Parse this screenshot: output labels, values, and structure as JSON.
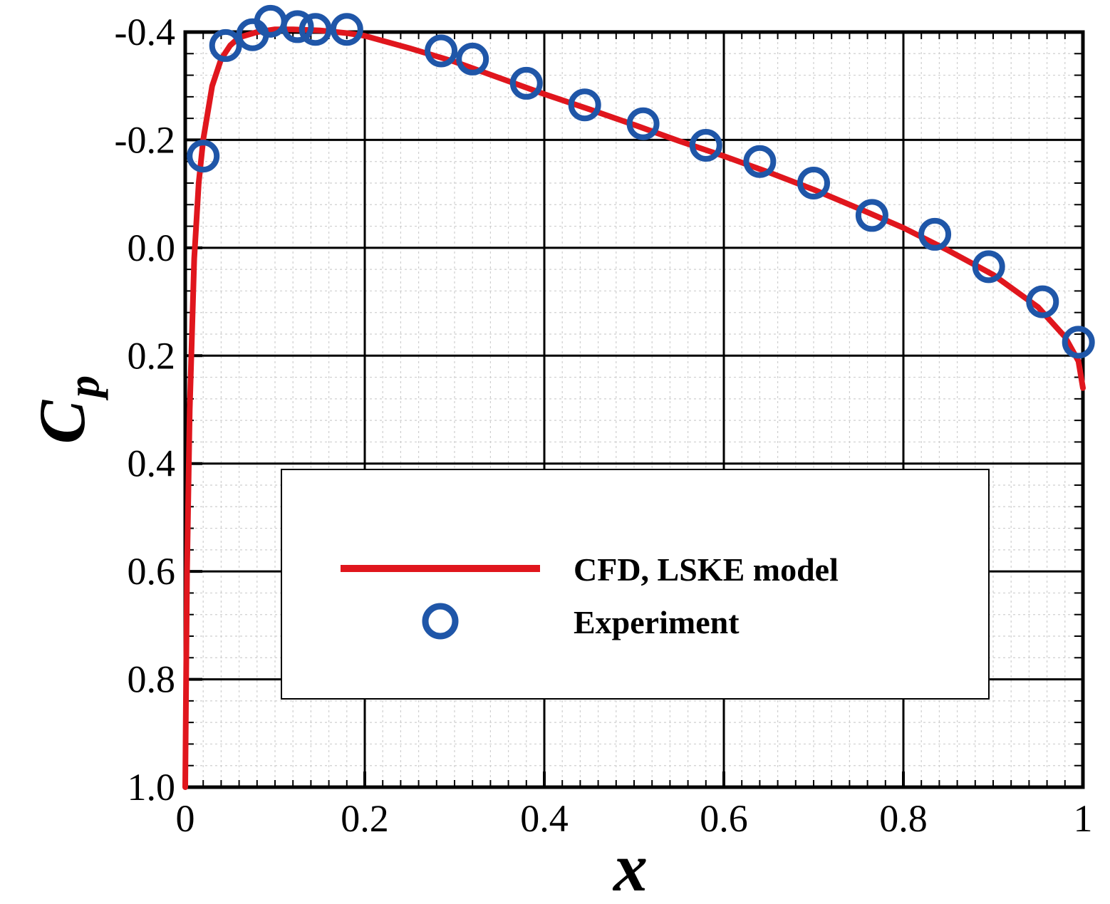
{
  "chart_data": {
    "type": "line",
    "xlabel": "x",
    "ylabel": {
      "base": "C",
      "subscript": "p"
    },
    "xlim": [
      0,
      1
    ],
    "ylim": [
      1.0,
      -0.4
    ],
    "y_inverted": true,
    "grid": true,
    "x_ticks": [
      {
        "value": 0,
        "label": "0"
      },
      {
        "value": 0.2,
        "label": "0.2"
      },
      {
        "value": 0.4,
        "label": "0.4"
      },
      {
        "value": 0.6,
        "label": "0.6"
      },
      {
        "value": 0.8,
        "label": "0.8"
      },
      {
        "value": 1,
        "label": "1"
      }
    ],
    "y_ticks": [
      {
        "value": -0.4,
        "label": "-0.4"
      },
      {
        "value": -0.2,
        "label": "-0.2"
      },
      {
        "value": 0.0,
        "label": "0.0"
      },
      {
        "value": 0.2,
        "label": "0.2"
      },
      {
        "value": 0.4,
        "label": "0.4"
      },
      {
        "value": 0.6,
        "label": "0.6"
      },
      {
        "value": 0.8,
        "label": "0.8"
      },
      {
        "value": 1.0,
        "label": "1.0"
      }
    ],
    "legend_position": "lower-center",
    "series": [
      {
        "name": "CFD, LSKE model",
        "kind": "line",
        "color": "#e0161d",
        "x": [
          0.0,
          0.002,
          0.005,
          0.01,
          0.015,
          0.02,
          0.03,
          0.04,
          0.05,
          0.06,
          0.08,
          0.1,
          0.12,
          0.15,
          0.18,
          0.2,
          0.25,
          0.3,
          0.35,
          0.4,
          0.45,
          0.5,
          0.55,
          0.6,
          0.65,
          0.7,
          0.75,
          0.8,
          0.85,
          0.9,
          0.95,
          0.98,
          0.995,
          1.0
        ],
        "y": [
          1.0,
          0.6,
          0.3,
          0.02,
          -0.12,
          -0.2,
          -0.3,
          -0.35,
          -0.375,
          -0.39,
          -0.4,
          -0.405,
          -0.405,
          -0.403,
          -0.398,
          -0.393,
          -0.37,
          -0.345,
          -0.315,
          -0.285,
          -0.257,
          -0.228,
          -0.198,
          -0.17,
          -0.14,
          -0.108,
          -0.073,
          -0.037,
          0.005,
          0.05,
          0.11,
          0.165,
          0.21,
          0.26
        ]
      },
      {
        "name": "Experiment",
        "kind": "scatter",
        "marker": "open-circle",
        "color": "#1f56a8",
        "x": [
          0.02,
          0.045,
          0.075,
          0.095,
          0.125,
          0.145,
          0.18,
          0.285,
          0.32,
          0.38,
          0.445,
          0.51,
          0.58,
          0.64,
          0.7,
          0.765,
          0.835,
          0.895,
          0.955,
          0.995
        ],
        "y": [
          -0.17,
          -0.375,
          -0.395,
          -0.42,
          -0.41,
          -0.405,
          -0.405,
          -0.365,
          -0.35,
          -0.305,
          -0.265,
          -0.23,
          -0.19,
          -0.16,
          -0.12,
          -0.06,
          -0.025,
          0.035,
          0.1,
          0.175
        ]
      }
    ]
  }
}
